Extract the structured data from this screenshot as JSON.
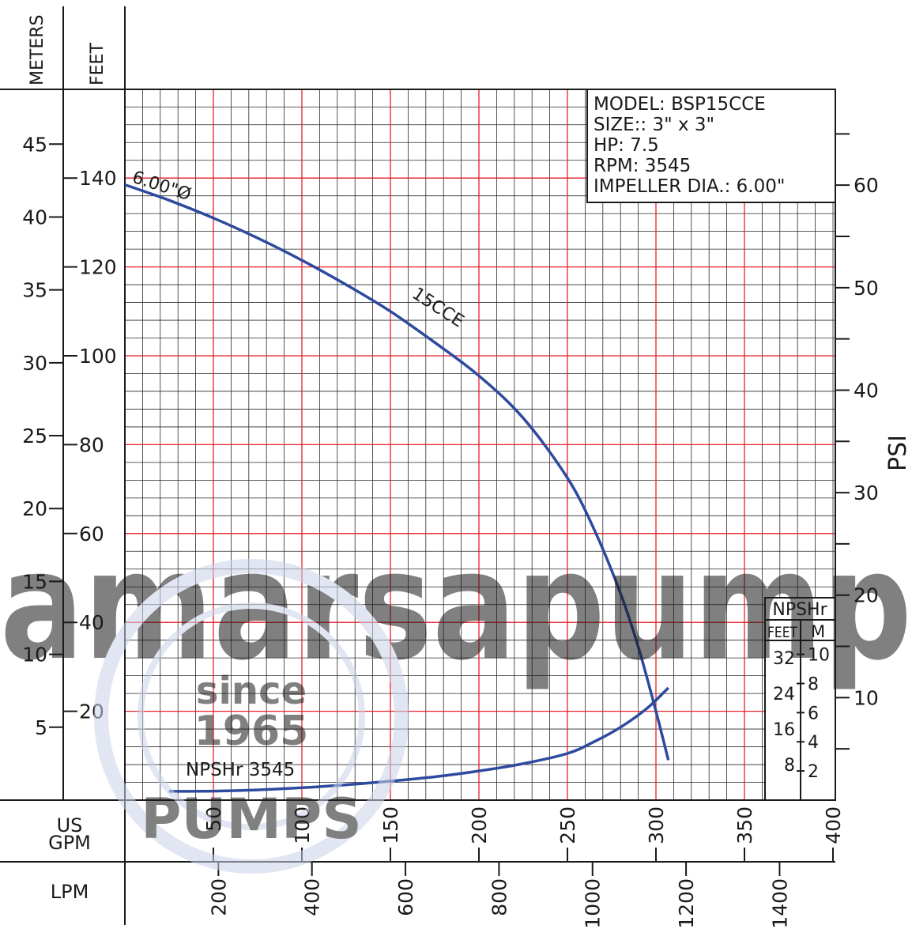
{
  "chart_data": {
    "type": "line",
    "x_axes": {
      "primary": {
        "label_lines": [
          "US",
          "GPM"
        ],
        "range": [
          0,
          400
        ],
        "ticks": [
          50,
          100,
          150,
          200,
          250,
          300,
          350,
          400
        ]
      },
      "secondary": {
        "label": "LPM",
        "ticks": [
          200,
          400,
          600,
          800,
          1000,
          1200,
          1400
        ]
      }
    },
    "y_axes": {
      "meters": {
        "label": "METERS",
        "range": [
          0,
          48.5
        ],
        "ticks": [
          5,
          10,
          15,
          20,
          25,
          30,
          35,
          40,
          45
        ]
      },
      "feet": {
        "label": "FEET",
        "range": [
          0,
          160
        ],
        "ticks": [
          20,
          40,
          60,
          80,
          100,
          120,
          140
        ]
      },
      "psi": {
        "label": "PSI",
        "range": [
          0,
          69.3
        ],
        "ticks": [
          10,
          20,
          30,
          40,
          50,
          60
        ]
      }
    },
    "grid": true,
    "series": [
      {
        "name": "15CCE",
        "curve_label": "15CCE",
        "diameter_label": "6.00\"Ø",
        "unit": "feet",
        "color": "#2e4a9e",
        "x": [
          0,
          25,
          50,
          75,
          100,
          125,
          150,
          175,
          200,
          225,
          250,
          265,
          280,
          290,
          300,
          307
        ],
        "y": [
          138.5,
          135,
          131,
          126.5,
          121.5,
          116,
          110,
          103,
          95.5,
          86,
          72.5,
          61,
          46.5,
          34.5,
          20,
          9
        ]
      },
      {
        "name": "NPSHr 3545",
        "curve_label": "NPSHr 3545",
        "unit": "npsh_m",
        "color": "#2e4a9e",
        "x": [
          25,
          50,
          75,
          100,
          125,
          150,
          175,
          200,
          225,
          250,
          265,
          280,
          295,
          307
        ],
        "y": [
          0.6,
          0.62,
          0.7,
          0.85,
          1.05,
          1.3,
          1.6,
          2.0,
          2.5,
          3.2,
          4.0,
          5.0,
          6.3,
          7.7
        ]
      }
    ],
    "npsh_scale": {
      "title": "NPSHr",
      "feet_label": "FEET",
      "m_label": "M",
      "feet_ticks": [
        8,
        16,
        24,
        32
      ],
      "m_ticks": [
        2,
        4,
        6,
        8,
        10
      ]
    },
    "info_box": [
      "MODEL:  BSP15CCE",
      "SIZE::  3\"  x  3\"",
      "HP:  7.5",
      "RPM:  3545",
      "IMPELLER  DIA.:  6.00\""
    ]
  },
  "colors": {
    "curve": "#2e4a9e",
    "grid_major": "#e8202a",
    "grid_minor": "#2a2a2a",
    "watermark": "#c9d3e8"
  },
  "watermark": {
    "text": "amarsapump",
    "seal_lines": [
      "since",
      "1965",
      "PUMPS"
    ]
  }
}
